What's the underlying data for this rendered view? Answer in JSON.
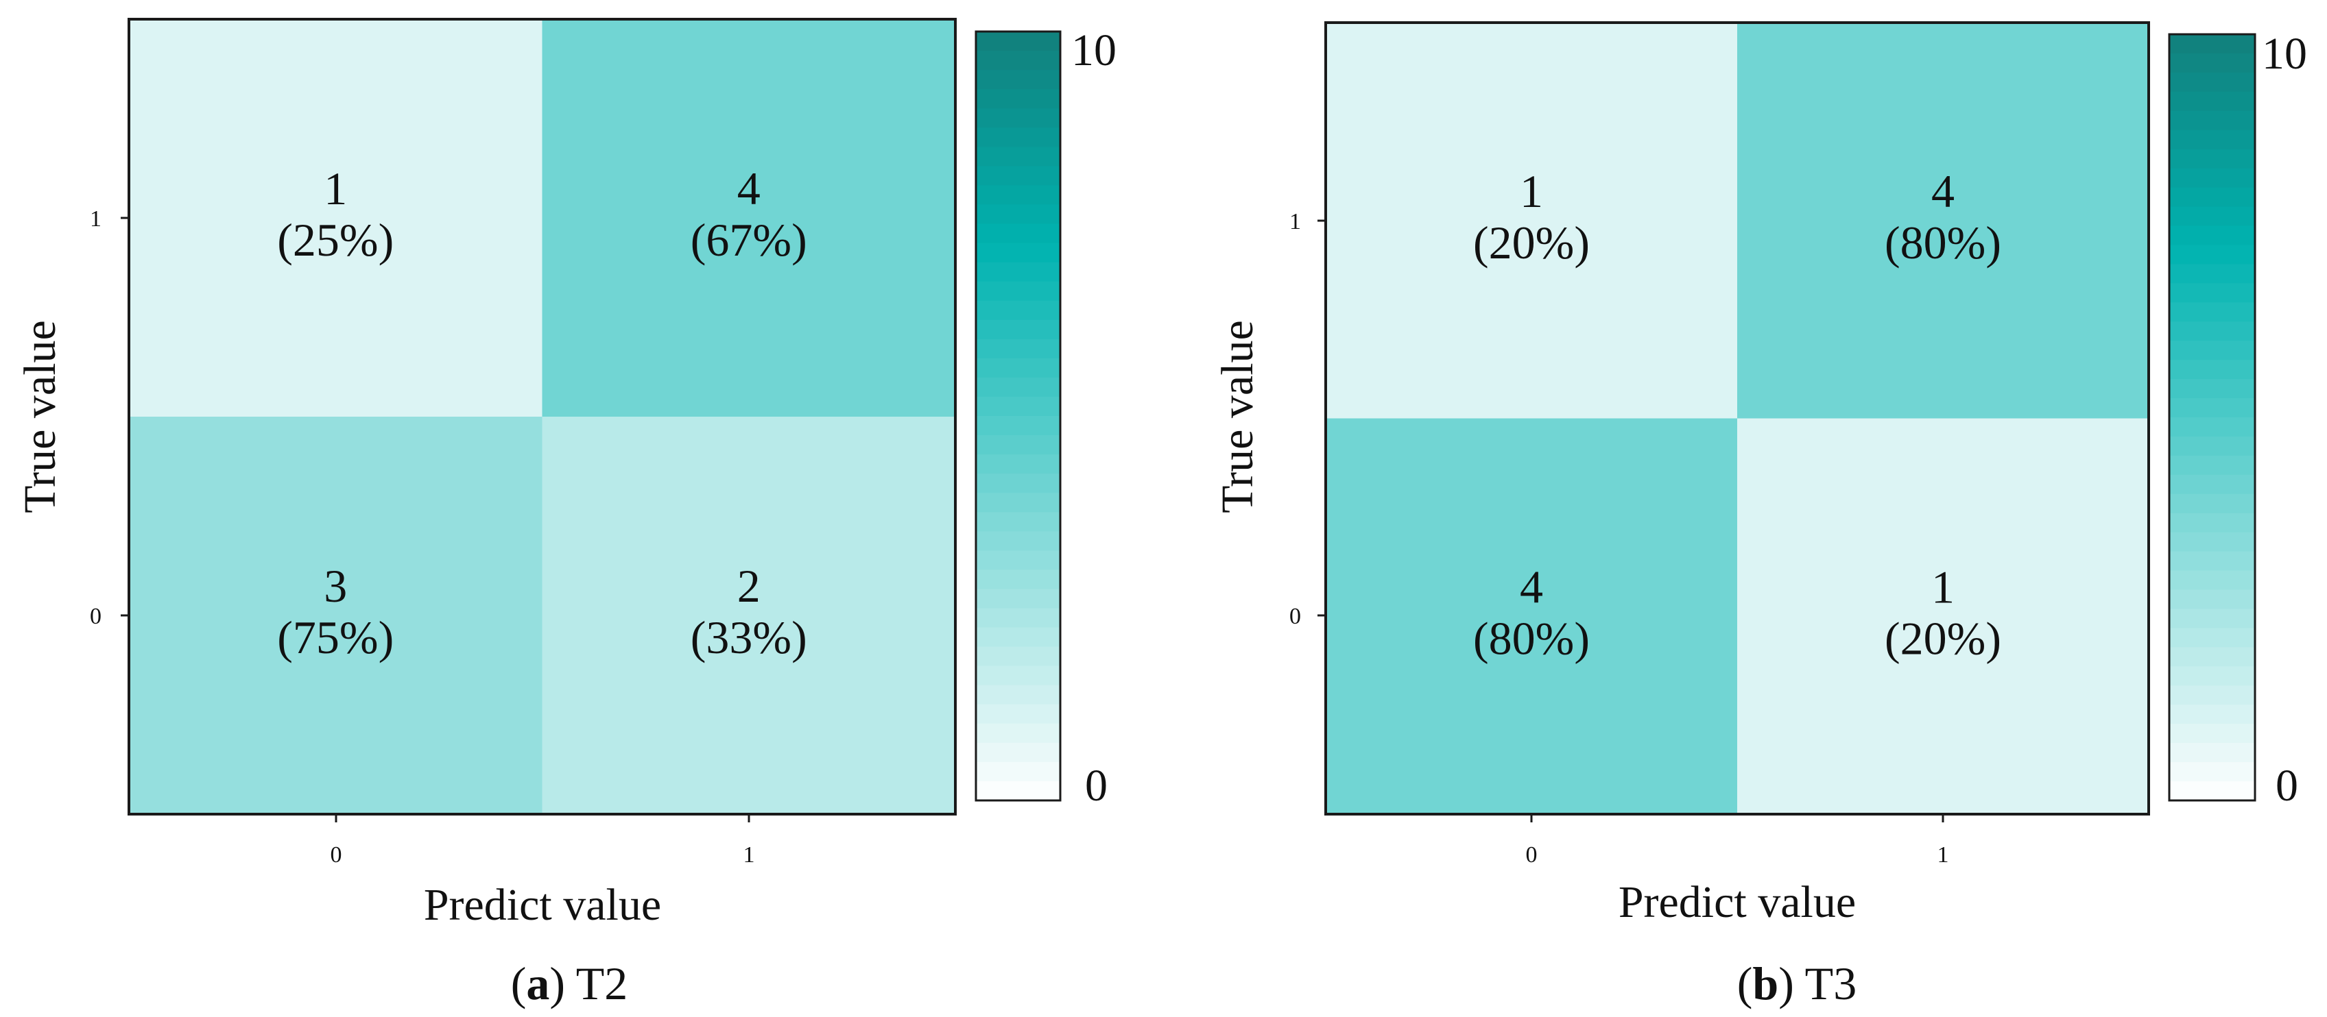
{
  "chart_data": [
    {
      "type": "heatmap",
      "caption_letter": "a",
      "caption_title": "T2",
      "xlabel": "Predict value",
      "ylabel": "True value",
      "x_categories": [
        "0",
        "1"
      ],
      "y_categories": [
        "1",
        "0"
      ],
      "cells": [
        [
          {
            "count": "1",
            "pct": "(25%)",
            "value": 1
          },
          {
            "count": "4",
            "pct": "(67%)",
            "value": 4
          }
        ],
        [
          {
            "count": "3",
            "pct": "(75%)",
            "value": 3
          },
          {
            "count": "2",
            "pct": "(33%)",
            "value": 2
          }
        ]
      ],
      "colorbar": {
        "min": 0,
        "max": 10,
        "min_label": "0",
        "max_label": "10"
      }
    },
    {
      "type": "heatmap",
      "caption_letter": "b",
      "caption_title": "T3",
      "xlabel": "Predict value",
      "ylabel": "True value",
      "x_categories": [
        "0",
        "1"
      ],
      "y_categories": [
        "1",
        "0"
      ],
      "cells": [
        [
          {
            "count": "1",
            "pct": "(20%)",
            "value": 1
          },
          {
            "count": "4",
            "pct": "(80%)",
            "value": 4
          }
        ],
        [
          {
            "count": "4",
            "pct": "(80%)",
            "value": 4
          },
          {
            "count": "1",
            "pct": "(20%)",
            "value": 1
          }
        ]
      ],
      "colorbar": {
        "min": 0,
        "max": 10,
        "min_label": "0",
        "max_label": "10"
      }
    }
  ],
  "colors": {
    "scale_low": "#ffffff",
    "scale_mid": "#00b3b0",
    "scale_high": "#12807c",
    "frame": "#1a1a1a"
  }
}
